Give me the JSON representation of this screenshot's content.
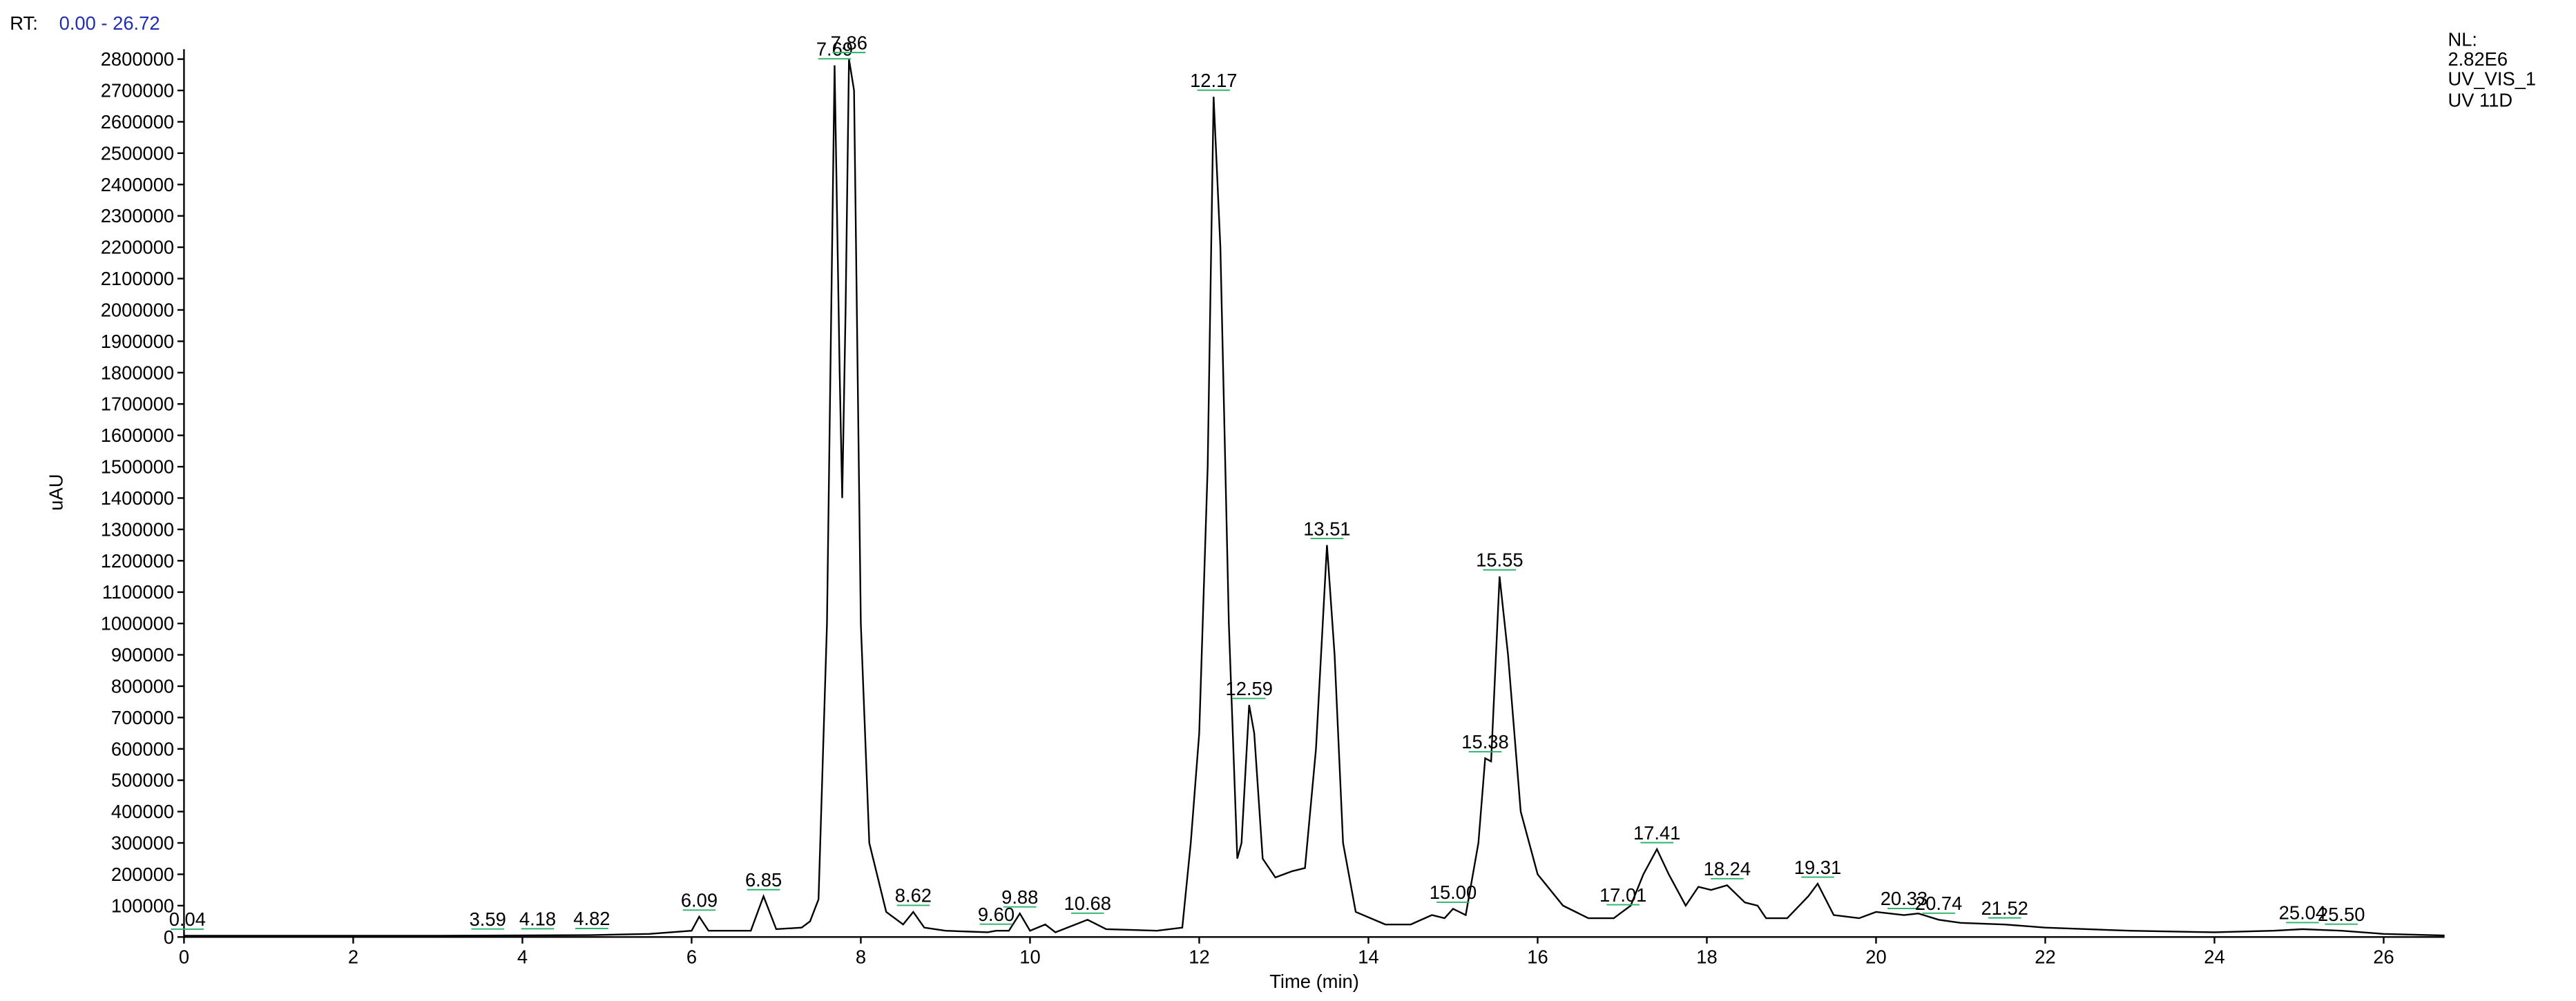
{
  "chart_data": {
    "type": "line",
    "rt_label": "RT:",
    "rt_range": "0.00 - 26.72",
    "nl_label": "NL:",
    "nl_value": "2.82E6",
    "channel": "UV_VIS_1",
    "detector": "UV 11D",
    "xlabel": "Time (min)",
    "ylabel": "uAU",
    "color": "#000000",
    "xlim": [
      0,
      26.72
    ],
    "ylim": [
      0,
      2820000
    ],
    "xticks": [
      0,
      2,
      4,
      6,
      8,
      10,
      12,
      14,
      16,
      18,
      20,
      22,
      24,
      26
    ],
    "yticks": [
      0,
      100000,
      200000,
      300000,
      400000,
      500000,
      600000,
      700000,
      800000,
      900000,
      1000000,
      1100000,
      1200000,
      1300000,
      1400000,
      1500000,
      1600000,
      1700000,
      1800000,
      1900000,
      2000000,
      2100000,
      2200000,
      2300000,
      2400000,
      2500000,
      2600000,
      2700000,
      2800000
    ],
    "x": [
      0,
      3.0,
      4.8,
      5.5,
      6.0,
      6.09,
      6.2,
      6.7,
      6.85,
      7.0,
      7.3,
      7.4,
      7.5,
      7.6,
      7.69,
      7.75,
      7.78,
      7.82,
      7.86,
      7.92,
      8.0,
      8.1,
      8.3,
      8.5,
      8.62,
      8.75,
      9.0,
      9.5,
      9.6,
      9.75,
      9.88,
      10.0,
      10.18,
      10.3,
      10.68,
      10.9,
      11.5,
      11.8,
      11.9,
      12.0,
      12.1,
      12.17,
      12.25,
      12.35,
      12.45,
      12.5,
      12.59,
      12.65,
      12.75,
      12.9,
      13.1,
      13.25,
      13.38,
      13.51,
      13.6,
      13.7,
      13.85,
      14.2,
      14.5,
      14.75,
      14.9,
      15.0,
      15.15,
      15.3,
      15.38,
      15.45,
      15.55,
      15.65,
      15.8,
      16.0,
      16.3,
      16.6,
      16.9,
      17.0,
      17.1,
      17.25,
      17.41,
      17.55,
      17.75,
      17.9,
      18.05,
      18.24,
      18.45,
      18.6,
      18.7,
      18.95,
      19.2,
      19.31,
      19.5,
      19.8,
      20.0,
      20.33,
      20.5,
      20.74,
      21.0,
      21.52,
      22,
      23,
      24,
      24.7,
      25.04,
      25.5,
      26.0,
      26.72
    ],
    "values": [
      4000,
      4000,
      6000,
      10000,
      20000,
      65000,
      20000,
      20000,
      130000,
      25000,
      30000,
      50000,
      120000,
      1000000,
      2780000,
      1800000,
      1400000,
      2000000,
      2800000,
      2700000,
      1000000,
      300000,
      80000,
      40000,
      80000,
      30000,
      20000,
      15000,
      20000,
      20000,
      75000,
      20000,
      40000,
      15000,
      55000,
      25000,
      20000,
      30000,
      300000,
      650000,
      1500000,
      2680000,
      2200000,
      1000000,
      250000,
      300000,
      740000,
      650000,
      250000,
      190000,
      210000,
      220000,
      600000,
      1250000,
      900000,
      300000,
      80000,
      40000,
      40000,
      70000,
      60000,
      90000,
      70000,
      300000,
      570000,
      560000,
      1150000,
      900000,
      400000,
      200000,
      100000,
      60000,
      60000,
      80000,
      100000,
      200000,
      280000,
      200000,
      100000,
      160000,
      150000,
      165000,
      110000,
      100000,
      60000,
      60000,
      130000,
      170000,
      70000,
      60000,
      80000,
      70000,
      75000,
      55000,
      45000,
      40000,
      30000,
      20000,
      15000,
      20000,
      25000,
      20000,
      10000,
      5000
    ],
    "peak_labels": [
      0.04,
      3.59,
      4.18,
      4.82,
      6.09,
      6.85,
      7.69,
      7.86,
      8.62,
      {
        "value": 9.6,
        "label": "9.60"
      },
      9.88,
      10.68,
      12.17,
      12.59,
      13.51,
      {
        "value": 15,
        "label": "15.00"
      },
      15.38,
      15.55,
      17.01,
      17.41,
      18.24,
      19.31,
      20.33,
      20.74,
      21.52,
      25.04,
      {
        "value": 25.5,
        "label": "25.50"
      }
    ]
  }
}
